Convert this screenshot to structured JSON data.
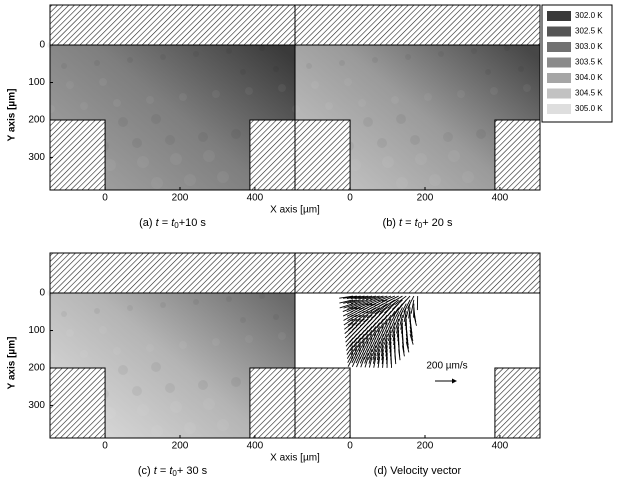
{
  "chart_data": [
    {
      "type": "temperature-map",
      "caption": {
        "label": "(a)",
        "var": "t",
        "eq": "=",
        "sub": "0",
        "rest": "+10 s"
      },
      "xlim": [
        -147,
        507
      ],
      "ylim": [
        387,
        -107
      ],
      "xticks": [
        0,
        200,
        400
      ],
      "yticks": [
        0,
        100,
        200,
        300
      ],
      "xlabel": "X axis [µm]",
      "ylabel": "Y axis [µm]",
      "shade": [
        "#a2a2a2",
        "#7e7e7e",
        "#3a3a3a"
      ]
    },
    {
      "type": "temperature-map",
      "caption": {
        "label": "(b)",
        "var": "t",
        "eq": "=",
        "sub": "0",
        "rest": "+ 20 s"
      },
      "xlim": [
        -147,
        507
      ],
      "ylim": [
        387,
        -107
      ],
      "xticks": [
        0,
        200,
        400
      ],
      "shade": [
        "#c4c4c4",
        "#9a9a9a",
        "#474747"
      ],
      "legend": [
        {
          "label": "302.0 K",
          "color": "#3a3a3a"
        },
        {
          "label": "302.5 K",
          "color": "#555555"
        },
        {
          "label": "303.0 K",
          "color": "#717171"
        },
        {
          "label": "303.5 K",
          "color": "#8b8b8b"
        },
        {
          "label": "304.0 K",
          "color": "#a6a6a6"
        },
        {
          "label": "304.5 K",
          "color": "#c2c2c2"
        },
        {
          "label": "305.0 K",
          "color": "#dedede"
        }
      ]
    },
    {
      "type": "temperature-map",
      "caption": {
        "label": "(c)",
        "var": "t",
        "eq": "=",
        "sub": "0",
        "rest": "+ 30 s"
      },
      "xlim": [
        -147,
        507
      ],
      "ylim": [
        387,
        -107
      ],
      "xticks": [
        0,
        200,
        400
      ],
      "yticks": [
        0,
        100,
        200,
        300
      ],
      "xlabel": "X axis [µm]",
      "ylabel": "Y axis [µm]",
      "shade": [
        "#dadada",
        "#b4b4b4",
        "#6a6a6a"
      ]
    },
    {
      "type": "vector",
      "caption": {
        "label": "(d)",
        "text": "Velocity vector"
      },
      "xlim": [
        -147,
        507
      ],
      "ylim": [
        387,
        -107
      ],
      "xticks": [
        0,
        200,
        400
      ],
      "vector_scale": "200 µm/s"
    }
  ]
}
